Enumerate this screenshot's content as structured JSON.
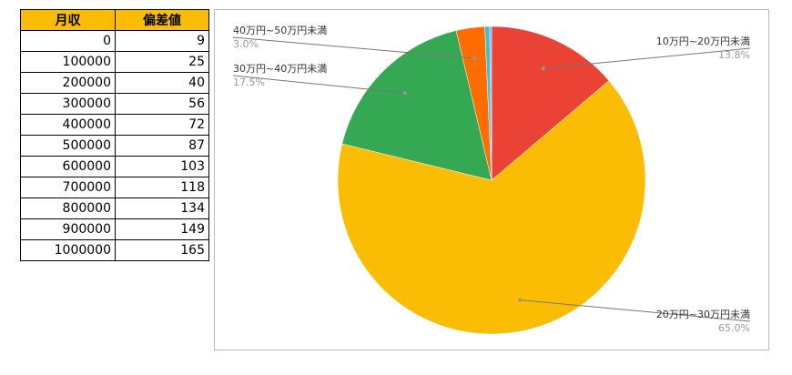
{
  "table": {
    "headers": [
      "月収",
      "偏差値"
    ],
    "rows": [
      [
        "0",
        "9"
      ],
      [
        "100000",
        "25"
      ],
      [
        "200000",
        "40"
      ],
      [
        "300000",
        "56"
      ],
      [
        "400000",
        "72"
      ],
      [
        "500000",
        "87"
      ],
      [
        "600000",
        "103"
      ],
      [
        "700000",
        "118"
      ],
      [
        "800000",
        "134"
      ],
      [
        "900000",
        "149"
      ],
      [
        "1000000",
        "165"
      ]
    ]
  },
  "chart_data": {
    "type": "pie",
    "slices": [
      {
        "label": "10万円~20万円未満",
        "value": 13.8,
        "pct": "13.8%",
        "color": "#ea4335"
      },
      {
        "label": "20万円~30万円未満",
        "value": 65.0,
        "pct": "65.0%",
        "color": "#fbbc04"
      },
      {
        "label": "30万円~40万円未満",
        "value": 17.5,
        "pct": "17.5%",
        "color": "#34a853"
      },
      {
        "label": "40万円~50万円未満",
        "value": 3.0,
        "pct": "3.0%",
        "color": "#ff6d01"
      },
      {
        "label": "",
        "value": 0.5,
        "pct": "",
        "color": "#46bdc6"
      },
      {
        "label": "",
        "value": 0.2,
        "pct": "",
        "color": "#7baaf7"
      }
    ],
    "start_angle": "12 o'clock, clockwise"
  }
}
